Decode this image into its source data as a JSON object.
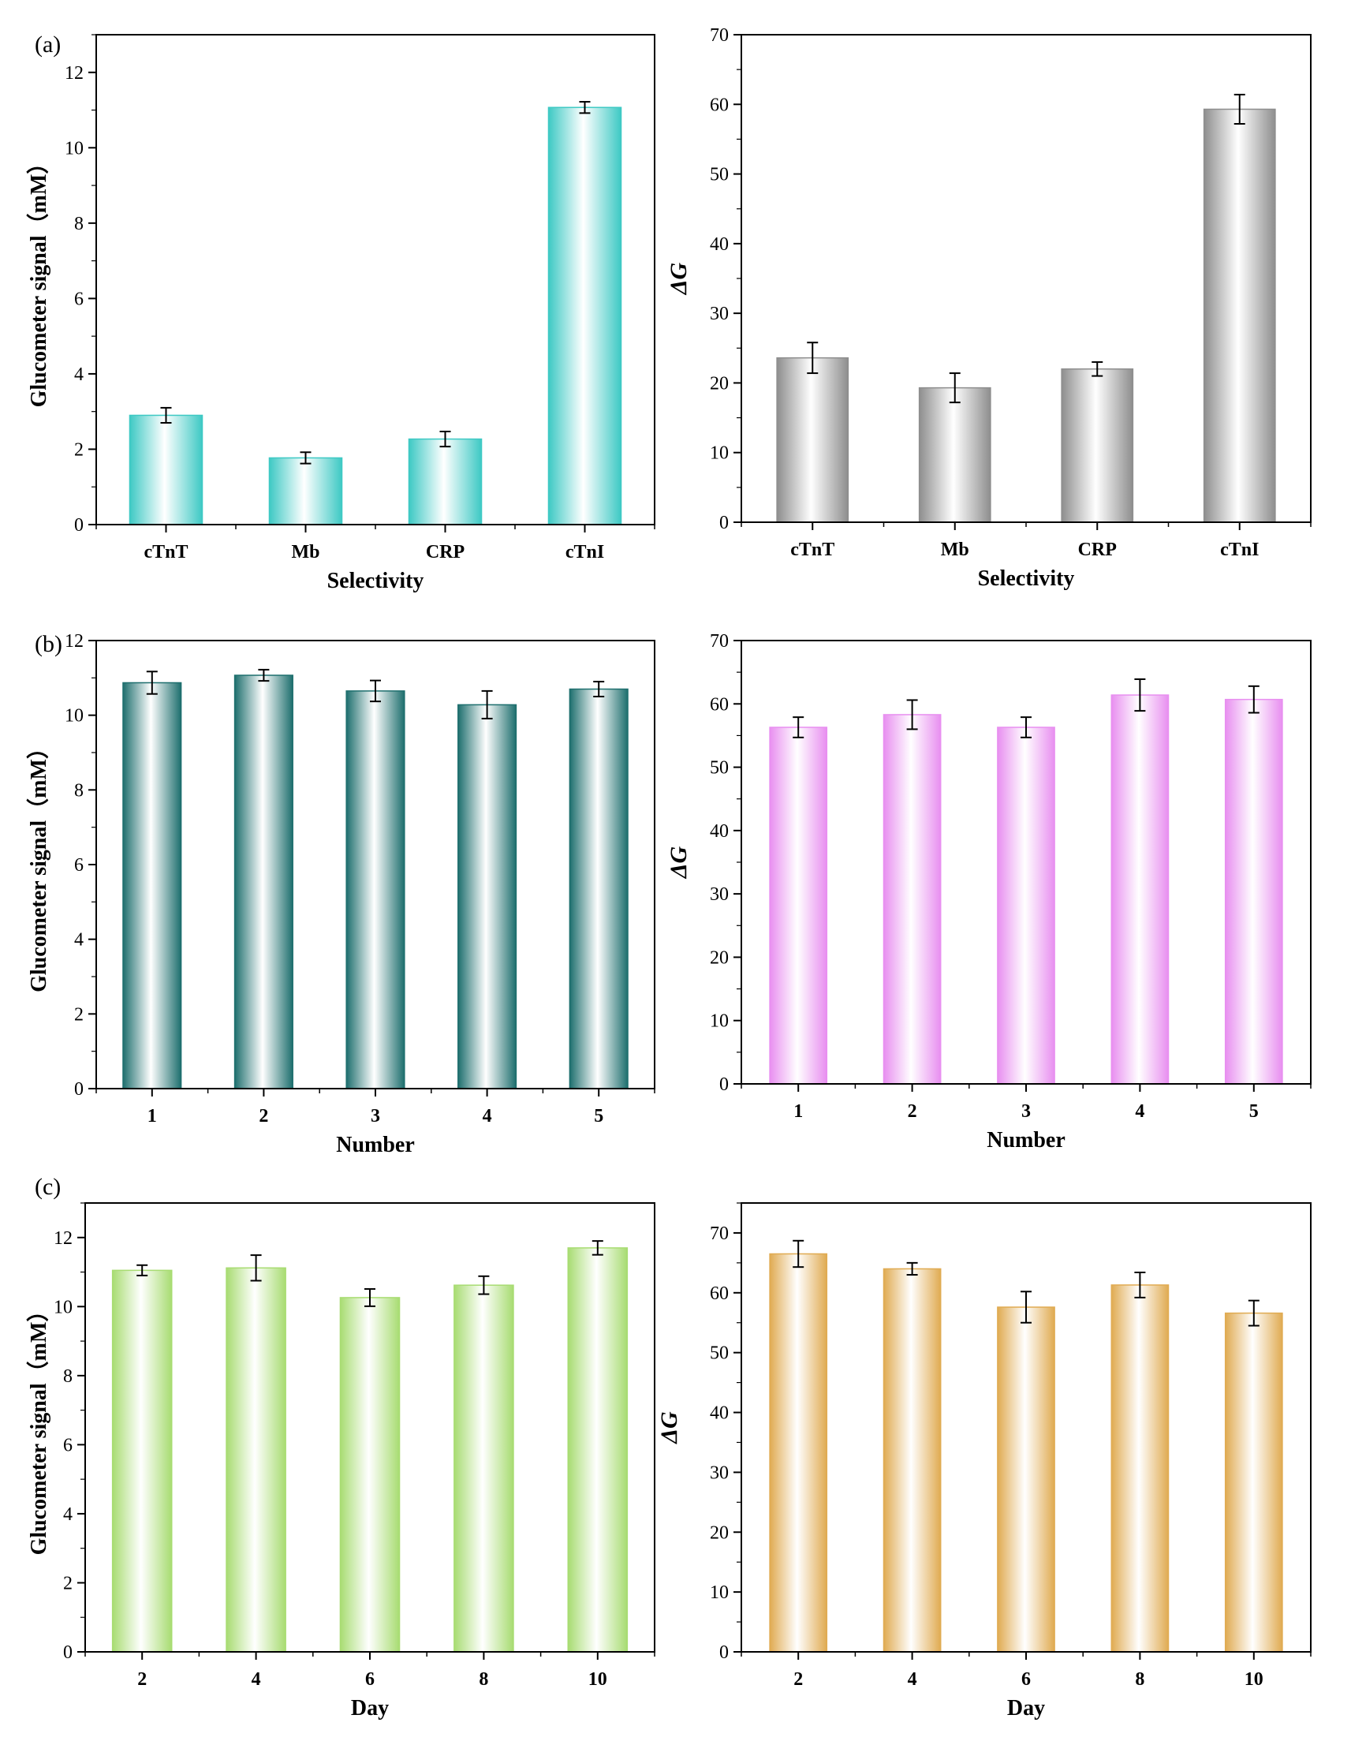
{
  "panel_labels": [
    "(a)",
    "(b)",
    "(c)"
  ],
  "colors": {
    "teal_light": "#3ec9c4",
    "teal_dark": "#1e6f6e",
    "green": "#a8dc72",
    "pink": "#e88ff0",
    "orange": "#e0ab52",
    "gray": "#8e8e8e",
    "axis": "#000000",
    "error": "#000000"
  },
  "chart_data": [
    {
      "id": "a-left",
      "type": "bar",
      "panel": "(a)",
      "title": "",
      "xlabel": "Selectivity",
      "ylabel": "Glucometer signal（mM）",
      "categories": [
        "cTnT",
        "Mb",
        "CRP",
        "cTnI"
      ],
      "values": [
        2.9,
        1.77,
        2.27,
        11.07
      ],
      "errors": [
        0.2,
        0.15,
        0.2,
        0.15
      ],
      "ylim": [
        0,
        13
      ],
      "yticks": [
        0,
        2,
        4,
        6,
        8,
        10,
        12
      ],
      "minor_step": 1,
      "color": "#3ec9c4",
      "grid": false
    },
    {
      "id": "a-right",
      "type": "bar",
      "panel": "(a)",
      "title": "",
      "xlabel": "Selectivity",
      "ylabel": "ΔG",
      "categories": [
        "cTnT",
        "Mb",
        "CRP",
        "cTnI"
      ],
      "values": [
        23.6,
        19.3,
        22.0,
        59.3
      ],
      "errors": [
        2.2,
        2.1,
        1.0,
        2.1
      ],
      "ylim": [
        0,
        70
      ],
      "yticks": [
        0,
        10,
        20,
        30,
        40,
        50,
        60,
        70
      ],
      "minor_step": 5,
      "color": "#8e8e8e",
      "grid": false
    },
    {
      "id": "b-left",
      "type": "bar",
      "panel": "(b)",
      "title": "",
      "xlabel": "Number",
      "ylabel": "Glucometer signal（mM）",
      "categories": [
        "1",
        "2",
        "3",
        "4",
        "5"
      ],
      "values": [
        10.87,
        11.07,
        10.65,
        10.28,
        10.7
      ],
      "errors": [
        0.3,
        0.15,
        0.28,
        0.37,
        0.2
      ],
      "ylim": [
        0,
        12
      ],
      "yticks": [
        0,
        2,
        4,
        6,
        8,
        10,
        12
      ],
      "minor_step": 1,
      "color": "#1e6f6e",
      "grid": false
    },
    {
      "id": "b-right",
      "type": "bar",
      "panel": "(b)",
      "title": "",
      "xlabel": "Number",
      "ylabel": "ΔG",
      "categories": [
        "1",
        "2",
        "3",
        "4",
        "5"
      ],
      "values": [
        56.3,
        58.3,
        56.3,
        61.4,
        60.7
      ],
      "errors": [
        1.6,
        2.3,
        1.6,
        2.5,
        2.1
      ],
      "ylim": [
        0,
        70
      ],
      "yticks": [
        0,
        10,
        20,
        30,
        40,
        50,
        60,
        70
      ],
      "minor_step": 5,
      "color": "#e88ff0",
      "grid": false
    },
    {
      "id": "c-left",
      "type": "bar",
      "panel": "(c)",
      "title": "",
      "xlabel": "Day",
      "ylabel": "Glucometer signal（mM）",
      "categories": [
        "2",
        "4",
        "6",
        "8",
        "10"
      ],
      "values": [
        11.05,
        11.12,
        10.26,
        10.62,
        11.7
      ],
      "errors": [
        0.15,
        0.37,
        0.25,
        0.26,
        0.2
      ],
      "ylim": [
        0,
        13
      ],
      "yticks": [
        0,
        2,
        4,
        6,
        8,
        10,
        12
      ],
      "minor_step": 1,
      "color": "#a8dc72",
      "grid": false
    },
    {
      "id": "c-right",
      "type": "bar",
      "panel": "(c)",
      "title": "",
      "xlabel": "Day",
      "ylabel": "ΔG",
      "categories": [
        "2",
        "4",
        "6",
        "8",
        "10"
      ],
      "values": [
        66.5,
        64.0,
        57.6,
        61.3,
        56.6
      ],
      "errors": [
        2.2,
        1.0,
        2.6,
        2.1,
        2.1
      ],
      "ylim": [
        0,
        75
      ],
      "yticks": [
        0,
        10,
        20,
        30,
        40,
        50,
        60,
        70
      ],
      "minor_step": 5,
      "color": "#e0ab52",
      "grid": false
    }
  ]
}
